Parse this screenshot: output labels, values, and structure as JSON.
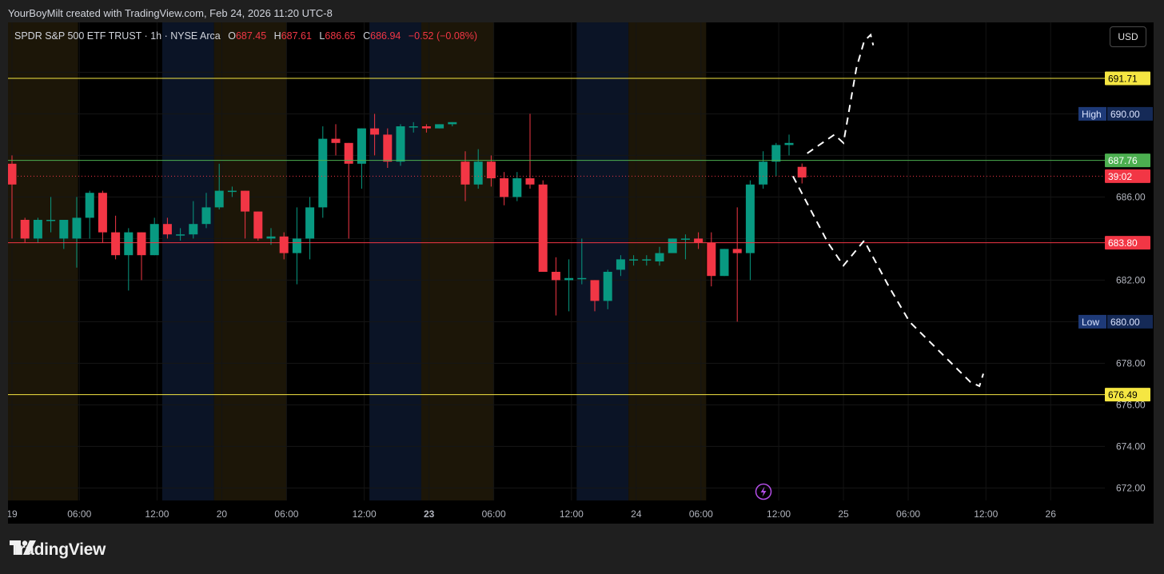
{
  "attribution": "YourBoyMilt created with TradingView.com, Feb 24, 2026 11:20 UTC-8",
  "header": {
    "symbol": "SPDR S&P 500 ETF TRUST · 1h · NYSE Arca",
    "o_label": "O",
    "o_value": "687.45",
    "h_label": "H",
    "h_value": "687.61",
    "l_label": "L",
    "l_value": "686.65",
    "c_label": "C",
    "c_value": "686.94",
    "change": "−0.52 (−0.08%)"
  },
  "currency_button": "USD",
  "brand": "TradingView",
  "colors": {
    "up": "#089981",
    "down": "#f23645",
    "yellow": "#f5e642",
    "green_line": "#4caf50",
    "red_line": "#f23645",
    "pre_market": "#1c1608",
    "post_market": "#0b1426"
  },
  "chart_data": {
    "type": "candlestick",
    "timeframe": "1h",
    "y_axis": {
      "min": 671.4,
      "max": 694.4,
      "ticks": [
        672,
        674,
        676,
        678,
        680,
        682,
        684,
        686,
        688,
        690,
        692
      ],
      "tick_labels": [
        "672.00",
        "674.00",
        "676.00",
        "678.00",
        "680.00",
        "682.00",
        "",
        "686.00",
        "",
        "",
        ""
      ]
    },
    "x_axis": {
      "labels": [
        {
          "i": 0,
          "text": "19",
          "bold": false
        },
        {
          "i": 5.2,
          "text": "06:00",
          "bold": false
        },
        {
          "i": 11.2,
          "text": "12:00",
          "bold": false
        },
        {
          "i": 16.2,
          "text": "20",
          "bold": false
        },
        {
          "i": 21.2,
          "text": "06:00",
          "bold": false
        },
        {
          "i": 27.2,
          "text": "12:00",
          "bold": false
        },
        {
          "i": 32.2,
          "text": "23",
          "bold": true
        },
        {
          "i": 37.2,
          "text": "06:00",
          "bold": false
        },
        {
          "i": 43.2,
          "text": "12:00",
          "bold": false
        },
        {
          "i": 48.2,
          "text": "24",
          "bold": false
        },
        {
          "i": 53.2,
          "text": "06:00",
          "bold": false
        },
        {
          "i": 59.2,
          "text": "12:00",
          "bold": false
        },
        {
          "i": 64.2,
          "text": "25",
          "bold": false
        },
        {
          "i": 69.2,
          "text": "06:00",
          "bold": false
        },
        {
          "i": 75.2,
          "text": "12:00",
          "bold": false
        },
        {
          "i": 80.2,
          "text": "26",
          "bold": false
        }
      ]
    },
    "sessions": [
      {
        "type": "pre",
        "from": -0.5,
        "to": 5.1
      },
      {
        "type": "post",
        "from": 11.6,
        "to": 15.6
      },
      {
        "type": "pre",
        "from": 15.6,
        "to": 21.2
      },
      {
        "type": "post",
        "from": 27.6,
        "to": 31.6
      },
      {
        "type": "pre",
        "from": 31.6,
        "to": 37.2
      },
      {
        "type": "post",
        "from": 43.6,
        "to": 47.6
      },
      {
        "type": "pre",
        "from": 47.6,
        "to": 53.6
      }
    ],
    "candles": [
      [
        687.6,
        686.6,
        688.0,
        684.0
      ],
      [
        684.9,
        684.0,
        685.0,
        683.8
      ],
      [
        684.0,
        684.9,
        685.0,
        683.8
      ],
      [
        684.9,
        684.9,
        686.0,
        684.3
      ],
      [
        684.0,
        684.9,
        684.9,
        683.5
      ],
      [
        684.0,
        685.0,
        686.0,
        682.6
      ],
      [
        685.0,
        686.2,
        686.3,
        684.0
      ],
      [
        686.2,
        684.3,
        686.3,
        683.8
      ],
      [
        684.3,
        683.2,
        685.1,
        683.0
      ],
      [
        683.2,
        684.3,
        684.5,
        681.5
      ],
      [
        684.3,
        683.2,
        684.3,
        682.0
      ],
      [
        683.2,
        684.7,
        685.0,
        683.2
      ],
      [
        684.7,
        684.2,
        685.0,
        684.0
      ],
      [
        684.2,
        684.2,
        684.5,
        683.9
      ],
      [
        684.2,
        684.7,
        685.8,
        684.0
      ],
      [
        684.7,
        685.5,
        686.2,
        684.5
      ],
      [
        685.5,
        686.3,
        687.6,
        685.4
      ],
      [
        686.3,
        686.3,
        686.5,
        686.0
      ],
      [
        686.3,
        685.3,
        686.3,
        684.0
      ],
      [
        685.3,
        684.0,
        685.3,
        683.9
      ],
      [
        684.0,
        684.1,
        684.5,
        683.7
      ],
      [
        684.1,
        683.3,
        684.3,
        683.0
      ],
      [
        683.3,
        684.0,
        685.5,
        681.8
      ],
      [
        684.0,
        685.5,
        686.0,
        683.0
      ],
      [
        685.5,
        688.8,
        689.4,
        685.0
      ],
      [
        688.8,
        688.6,
        689.5,
        688.0
      ],
      [
        688.6,
        687.6,
        688.6,
        684.0
      ],
      [
        687.6,
        689.3,
        689.3,
        686.4
      ],
      [
        689.3,
        689.0,
        690.0,
        688.0
      ],
      [
        689.0,
        687.7,
        689.3,
        687.4
      ],
      [
        687.7,
        689.4,
        689.5,
        687.5
      ],
      [
        689.4,
        689.4,
        689.6,
        689.1
      ],
      [
        689.4,
        689.3,
        689.5,
        689.1
      ],
      [
        689.3,
        689.5,
        689.5,
        689.3
      ],
      [
        689.5,
        689.6,
        689.6,
        689.4
      ],
      [
        687.7,
        686.6,
        688.2,
        685.8
      ],
      [
        686.6,
        687.7,
        688.3,
        686.4
      ],
      [
        687.7,
        686.9,
        688.0,
        686.5
      ],
      [
        686.9,
        686.0,
        687.2,
        685.6
      ],
      [
        686.0,
        686.9,
        687.2,
        685.8
      ],
      [
        686.9,
        686.6,
        690.0,
        686.4
      ],
      [
        686.6,
        682.4,
        686.8,
        682.4
      ],
      [
        682.4,
        682.0,
        683.1,
        680.3
      ],
      [
        682.0,
        682.1,
        683.0,
        680.5
      ],
      [
        682.1,
        682.1,
        684.0,
        681.8
      ],
      [
        682.0,
        681.0,
        682.0,
        680.5
      ],
      [
        681.0,
        682.4,
        682.5,
        680.6
      ],
      [
        682.5,
        683.0,
        683.2,
        682.2
      ],
      [
        683.0,
        683.0,
        683.2,
        682.7
      ],
      [
        683.0,
        683.0,
        683.2,
        682.7
      ],
      [
        682.9,
        683.3,
        683.6,
        682.7
      ],
      [
        683.3,
        684.0,
        684.0,
        683.4
      ],
      [
        684.0,
        684.0,
        684.2,
        683.0
      ],
      [
        684.0,
        683.8,
        684.3,
        683.5
      ],
      [
        683.8,
        682.2,
        684.3,
        681.7
      ],
      [
        682.2,
        683.5,
        683.5,
        682.2
      ],
      [
        683.5,
        683.3,
        685.5,
        680.0
      ],
      [
        683.3,
        686.6,
        686.8,
        682.0
      ],
      [
        686.6,
        687.7,
        688.2,
        686.4
      ],
      [
        687.7,
        688.5,
        688.6,
        687.0
      ],
      [
        688.5,
        688.6,
        689.0,
        688.0
      ],
      [
        687.45,
        686.94,
        687.61,
        686.65
      ]
    ],
    "levels": [
      {
        "price": 691.71,
        "label": "691.71",
        "color": "#f5e642",
        "text_color": "#000"
      },
      {
        "price": 687.76,
        "label": "687.76",
        "color": "#4caf50",
        "text_color": "#fff"
      },
      {
        "price": 683.8,
        "label": "683.80",
        "color": "#f23645",
        "text_color": "#fff"
      },
      {
        "price": 676.49,
        "label": "676.49",
        "color": "#f5e642",
        "text_color": "#000"
      }
    ],
    "current_price": {
      "price": 687.0,
      "label": "39:02"
    },
    "high_marker": {
      "label": "High",
      "value": "690.00",
      "price": 690.0
    },
    "low_marker": {
      "label": "Low",
      "value": "680.00",
      "price": 680.0
    },
    "projection_up": [
      [
        61.4,
        688.1
      ],
      [
        63.5,
        689.0
      ],
      [
        64.2,
        688.6
      ],
      [
        65.2,
        692.2
      ],
      [
        65.8,
        693.5
      ],
      [
        66.3,
        693.8
      ],
      [
        66.5,
        693.3
      ]
    ],
    "projection_down": [
      [
        60.3,
        687.0
      ],
      [
        63.0,
        683.8
      ],
      [
        64.2,
        682.7
      ],
      [
        65.8,
        683.9
      ],
      [
        67.7,
        681.7
      ],
      [
        69.3,
        680.0
      ],
      [
        74.0,
        677.1
      ],
      [
        74.7,
        676.9
      ],
      [
        75.0,
        677.5
      ]
    ]
  }
}
